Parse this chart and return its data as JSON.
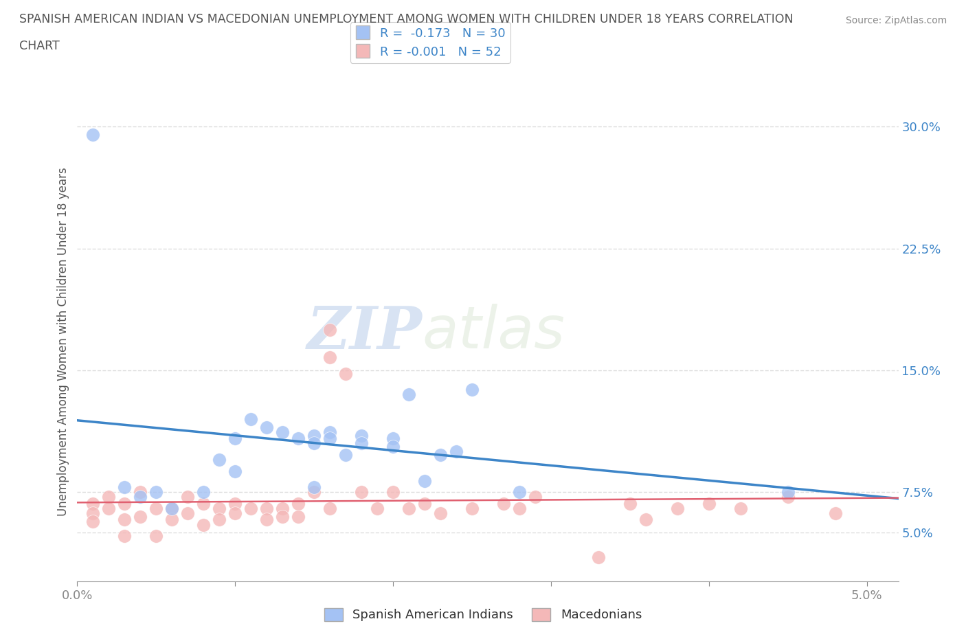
{
  "title_line1": "SPANISH AMERICAN INDIAN VS MACEDONIAN UNEMPLOYMENT AMONG WOMEN WITH CHILDREN UNDER 18 YEARS CORRELATION",
  "title_line2": "CHART",
  "source": "Source: ZipAtlas.com",
  "ylabel": "Unemployment Among Women with Children Under 18 years",
  "legend_labels": [
    "Spanish American Indians",
    "Macedonians"
  ],
  "legend_r": [
    "R =  -0.173",
    "R = -0.001"
  ],
  "legend_n": [
    "N = 30",
    "N = 52"
  ],
  "blue_color": "#a4c2f4",
  "pink_color": "#f4b8b8",
  "blue_line_color": "#3d85c8",
  "pink_line_color": "#e06070",
  "watermark_zip": "ZIP",
  "watermark_atlas": "atlas",
  "xlim": [
    0.0,
    0.052
  ],
  "ylim": [
    0.02,
    0.315
  ],
  "yticks_right": [
    0.05,
    0.075,
    0.15,
    0.225,
    0.3
  ],
  "ytick_labels_right": [
    "5.0%",
    "7.5%",
    "15.0%",
    "22.5%",
    "30.0%"
  ],
  "xticks": [
    0.0,
    0.01,
    0.02,
    0.03,
    0.04,
    0.05
  ],
  "xtick_labels": [
    "0.0%",
    "",
    "",
    "",
    "",
    "5.0%"
  ],
  "blue_scatter_x": [
    0.003,
    0.004,
    0.005,
    0.006,
    0.008,
    0.009,
    0.01,
    0.01,
    0.011,
    0.012,
    0.013,
    0.014,
    0.015,
    0.015,
    0.015,
    0.016,
    0.016,
    0.017,
    0.018,
    0.018,
    0.02,
    0.02,
    0.021,
    0.022,
    0.023,
    0.024,
    0.025,
    0.028,
    0.045,
    0.001
  ],
  "blue_scatter_y": [
    0.078,
    0.072,
    0.075,
    0.065,
    0.075,
    0.095,
    0.088,
    0.108,
    0.12,
    0.115,
    0.112,
    0.108,
    0.11,
    0.105,
    0.078,
    0.112,
    0.108,
    0.098,
    0.11,
    0.105,
    0.108,
    0.103,
    0.135,
    0.082,
    0.098,
    0.1,
    0.138,
    0.075,
    0.075,
    0.295
  ],
  "pink_scatter_x": [
    0.001,
    0.001,
    0.001,
    0.002,
    0.002,
    0.003,
    0.003,
    0.003,
    0.004,
    0.004,
    0.005,
    0.005,
    0.006,
    0.006,
    0.007,
    0.007,
    0.008,
    0.008,
    0.009,
    0.009,
    0.01,
    0.01,
    0.011,
    0.012,
    0.012,
    0.013,
    0.013,
    0.014,
    0.014,
    0.015,
    0.016,
    0.016,
    0.017,
    0.018,
    0.019,
    0.02,
    0.021,
    0.022,
    0.023,
    0.025,
    0.027,
    0.028,
    0.029,
    0.035,
    0.036,
    0.038,
    0.04,
    0.042,
    0.045,
    0.048,
    0.016,
    0.033
  ],
  "pink_scatter_y": [
    0.068,
    0.062,
    0.057,
    0.072,
    0.065,
    0.068,
    0.058,
    0.048,
    0.075,
    0.06,
    0.065,
    0.048,
    0.065,
    0.058,
    0.072,
    0.062,
    0.068,
    0.055,
    0.065,
    0.058,
    0.068,
    0.062,
    0.065,
    0.065,
    0.058,
    0.065,
    0.06,
    0.068,
    0.06,
    0.075,
    0.065,
    0.158,
    0.148,
    0.075,
    0.065,
    0.075,
    0.065,
    0.068,
    0.062,
    0.065,
    0.068,
    0.065,
    0.072,
    0.068,
    0.058,
    0.065,
    0.068,
    0.065,
    0.072,
    0.062,
    0.175,
    0.035
  ],
  "background_color": "#ffffff",
  "grid_color": "#dddddd"
}
